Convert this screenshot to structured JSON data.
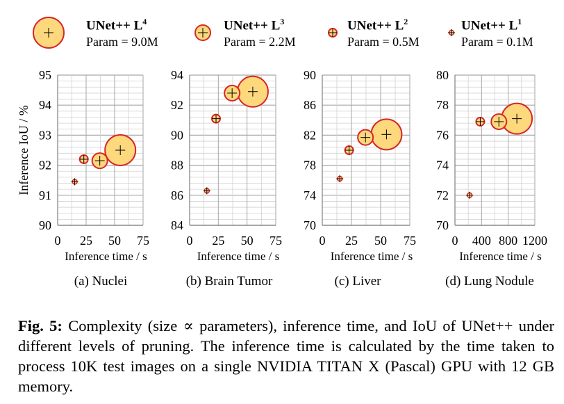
{
  "legend": [
    {
      "name": "UNet++ L",
      "level": "4",
      "param": "Param = 9.0M"
    },
    {
      "name": "UNet++ L",
      "level": "3",
      "param": "Param = 2.2M"
    },
    {
      "name": "UNet++ L",
      "level": "2",
      "param": "Param = 0.5M"
    },
    {
      "name": "UNet++ L",
      "level": "1",
      "param": "Param = 0.1M"
    }
  ],
  "colors": {
    "bubble_fill": "#fdd87c",
    "bubble_stroke": "#d62728",
    "grid": "#a6a6a6",
    "marker": "#000000"
  },
  "caption": {
    "label": "Fig. 5:",
    "text": "Complexity (size ∝ parameters), inference time, and IoU of UNet++ under different levels of pruning. The inference time is calculated by the time taken to process 10K test images on a single NVIDIA TITAN X (Pascal) GPU with 12 GB memory."
  },
  "chart_data": [
    {
      "type": "scatter",
      "subcaption": "(a) Nuclei",
      "xlabel": "Inference time / s",
      "ylabel": "Inference IoU / %",
      "xlim": [
        0,
        75
      ],
      "ylim": [
        90,
        95
      ],
      "xticks": [
        0,
        25,
        50,
        75
      ],
      "yticks": [
        90,
        91,
        92,
        93,
        94,
        95
      ],
      "points": [
        {
          "level": "L1",
          "x": 15,
          "y": 91.45,
          "param_m": 0.1
        },
        {
          "level": "L2",
          "x": 23,
          "y": 92.2,
          "param_m": 0.5
        },
        {
          "level": "L3",
          "x": 37,
          "y": 92.15,
          "param_m": 2.2
        },
        {
          "level": "L4",
          "x": 55,
          "y": 92.5,
          "param_m": 9.0
        }
      ]
    },
    {
      "type": "scatter",
      "subcaption": "(b) Brain Tumor",
      "xlabel": "Inference time / s",
      "ylabel": "",
      "xlim": [
        0,
        75
      ],
      "ylim": [
        84,
        94
      ],
      "xticks": [
        0,
        25,
        50,
        75
      ],
      "yticks": [
        84,
        86,
        88,
        90,
        92,
        94
      ],
      "points": [
        {
          "level": "L1",
          "x": 15,
          "y": 86.3,
          "param_m": 0.1
        },
        {
          "level": "L2",
          "x": 23,
          "y": 91.1,
          "param_m": 0.5
        },
        {
          "level": "L3",
          "x": 37,
          "y": 92.8,
          "param_m": 2.2
        },
        {
          "level": "L4",
          "x": 55,
          "y": 92.9,
          "param_m": 9.0
        }
      ]
    },
    {
      "type": "scatter",
      "subcaption": "(c) Liver",
      "xlabel": "Inference time / s",
      "ylabel": "",
      "xlim": [
        0,
        75
      ],
      "ylim": [
        70,
        90
      ],
      "xticks": [
        0,
        25,
        50,
        75
      ],
      "yticks": [
        70,
        74,
        78,
        82,
        86,
        90
      ],
      "points": [
        {
          "level": "L1",
          "x": 15,
          "y": 76.2,
          "param_m": 0.1
        },
        {
          "level": "L2",
          "x": 23,
          "y": 80.0,
          "param_m": 0.5
        },
        {
          "level": "L3",
          "x": 37,
          "y": 81.7,
          "param_m": 2.2
        },
        {
          "level": "L4",
          "x": 55,
          "y": 82.1,
          "param_m": 9.0
        }
      ]
    },
    {
      "type": "scatter",
      "subcaption": "(d) Lung Nodule",
      "xlabel": "Inference time / s",
      "ylabel": "",
      "xlim": [
        0,
        1200
      ],
      "ylim": [
        70,
        80
      ],
      "xticks": [
        0,
        400,
        800,
        1200
      ],
      "yticks": [
        70,
        72,
        74,
        76,
        78,
        80
      ],
      "points": [
        {
          "level": "L1",
          "x": 220,
          "y": 72.0,
          "param_m": 0.1
        },
        {
          "level": "L2",
          "x": 380,
          "y": 76.9,
          "param_m": 0.5
        },
        {
          "level": "L3",
          "x": 660,
          "y": 76.9,
          "param_m": 2.2
        },
        {
          "level": "L4",
          "x": 930,
          "y": 77.1,
          "param_m": 9.0
        }
      ]
    }
  ]
}
